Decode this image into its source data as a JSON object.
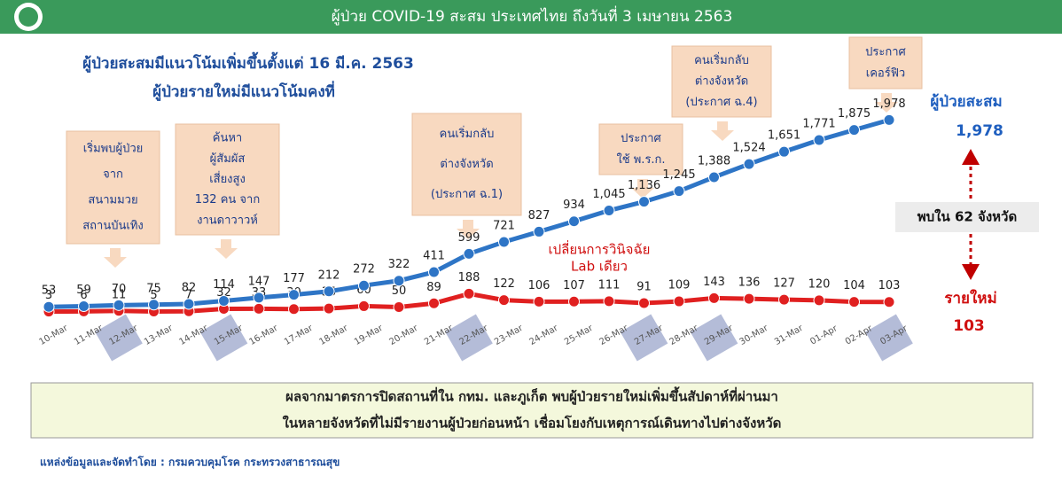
{
  "header": {
    "title": "ผู้ป่วย COVID-19 สะสม  ประเทศไทย ถึงวันที่ 3 เมษายน 2563"
  },
  "subtitle": [
    "ผู้ป่วยสะสมมีแนวโน้มเพิ่มขึ้นตั้งแต่ 16 มี.ค. 2563",
    "ผู้ป่วยรายใหม่มีแนวโน้มคงที่"
  ],
  "chart_data": {
    "type": "line",
    "categories": [
      "10-Mar",
      "11-Mar",
      "12-Mar",
      "13-Mar",
      "14-Mar",
      "15-Mar",
      "16-Mar",
      "17-Mar",
      "18-Mar",
      "19-Mar",
      "20-Mar",
      "21-Mar",
      "22-Mar",
      "23-Mar",
      "24-Mar",
      "25-Mar",
      "26-Mar",
      "27-Mar",
      "28-Mar",
      "29-Mar",
      "30-Mar",
      "31-Mar",
      "01-Apr",
      "02-Apr",
      "03-Apr"
    ],
    "highlight": [
      2,
      5,
      12,
      17,
      19,
      24
    ],
    "series": [
      {
        "name": "ผู้ป่วยสะสม",
        "color": "#2e75c6",
        "values": [
          53,
          59,
          70,
          75,
          82,
          114,
          147,
          177,
          212,
          272,
          322,
          411,
          599,
          721,
          827,
          934,
          1045,
          1136,
          1245,
          1388,
          1524,
          1651,
          1771,
          1875,
          1978
        ],
        "value_labels": [
          "53",
          "59",
          "70",
          "75",
          "82",
          "114",
          "147",
          "177",
          "212",
          "272",
          "322",
          "411",
          "599",
          "721",
          "827",
          "934",
          "1,045",
          "1,136",
          "1,245",
          "1,388",
          "1,524",
          "1,651",
          "1,771",
          "1,875",
          "1,978"
        ]
      },
      {
        "name": "รายใหม่",
        "color": "#e02020",
        "values": [
          3,
          6,
          11,
          5,
          7,
          32,
          33,
          30,
          35,
          60,
          50,
          89,
          188,
          122,
          106,
          107,
          111,
          91,
          109,
          143,
          136,
          127,
          120,
          104,
          103
        ]
      }
    ],
    "ylim": [
      0,
      2100
    ],
    "annotations": [
      {
        "lines": [
          "เริ่มพบผู้ป่วย",
          "จาก",
          "สนามมวย",
          "สถานบันเทิง"
        ]
      },
      {
        "lines": [
          "ค้นหา",
          "ผู้สัมผัส",
          "เสี่ยงสูง",
          "132 คน จาก",
          "งานดาวาวห์"
        ]
      },
      {
        "lines": [
          "คนเริ่มกลับ",
          "ต่างจังหวัด",
          "(ประกาศ ฉ.1)"
        ]
      },
      {
        "lines": [
          "ประกาศ",
          "ใช้ พ.ร.ก."
        ]
      },
      {
        "lines": [
          "คนเริ่มกลับ",
          "ต่างจังหวัด",
          "(ประกาศ ฉ.4)"
        ]
      },
      {
        "lines": [
          "ประกาศ",
          "เคอร์ฟิว"
        ]
      }
    ],
    "note": [
      "เปลี่ยนการวินิจฉัย",
      "Lab เดียว"
    ],
    "side": {
      "total_label": "ผู้ป่วยสะสม",
      "total": "1,978",
      "provinces": "พบใน 62 จังหวัด",
      "new_label": "รายใหม่",
      "new": "103"
    }
  },
  "footer": {
    "box": [
      "ผลจากมาตรการปิดสถานที่ใน  กทม. และภูเก็ต พบผู้ป่วยรายใหม่เพิ่มขึ้นสัปดาห์ที่ผ่านมา",
      "ในหลายจังหวัดที่ไม่มีรายงานผู้ป่วยก่อนหน้า   เชื่อมโยงกับเหตุการณ์เดินทางไปต่างจังหวัด"
    ],
    "source": "แหล่งข้อมูลและจัดทำโดย : กรมควบคุมโรค กระทรวงสาธารณสุข"
  }
}
